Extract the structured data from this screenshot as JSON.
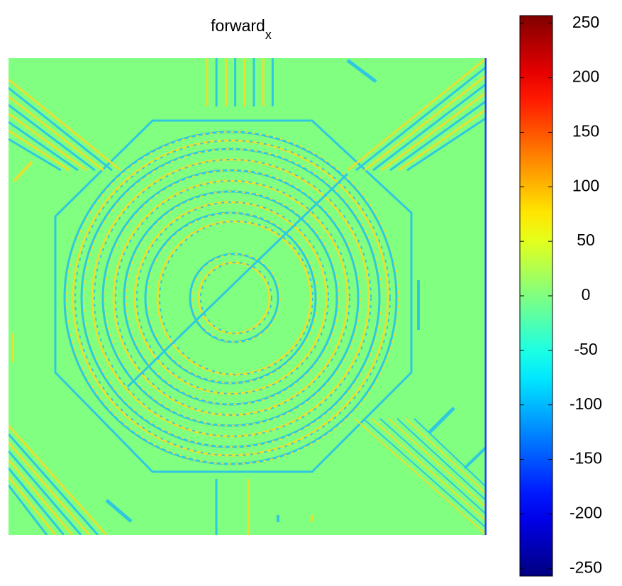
{
  "chart_data": {
    "type": "heatmap",
    "title": "forward",
    "title_subscript": "x",
    "colormap": "jet",
    "clim": [
      -257,
      257
    ],
    "cticks": [
      250,
      200,
      150,
      100,
      50,
      0,
      -50,
      -100,
      -150,
      -200,
      -250
    ]
  }
}
